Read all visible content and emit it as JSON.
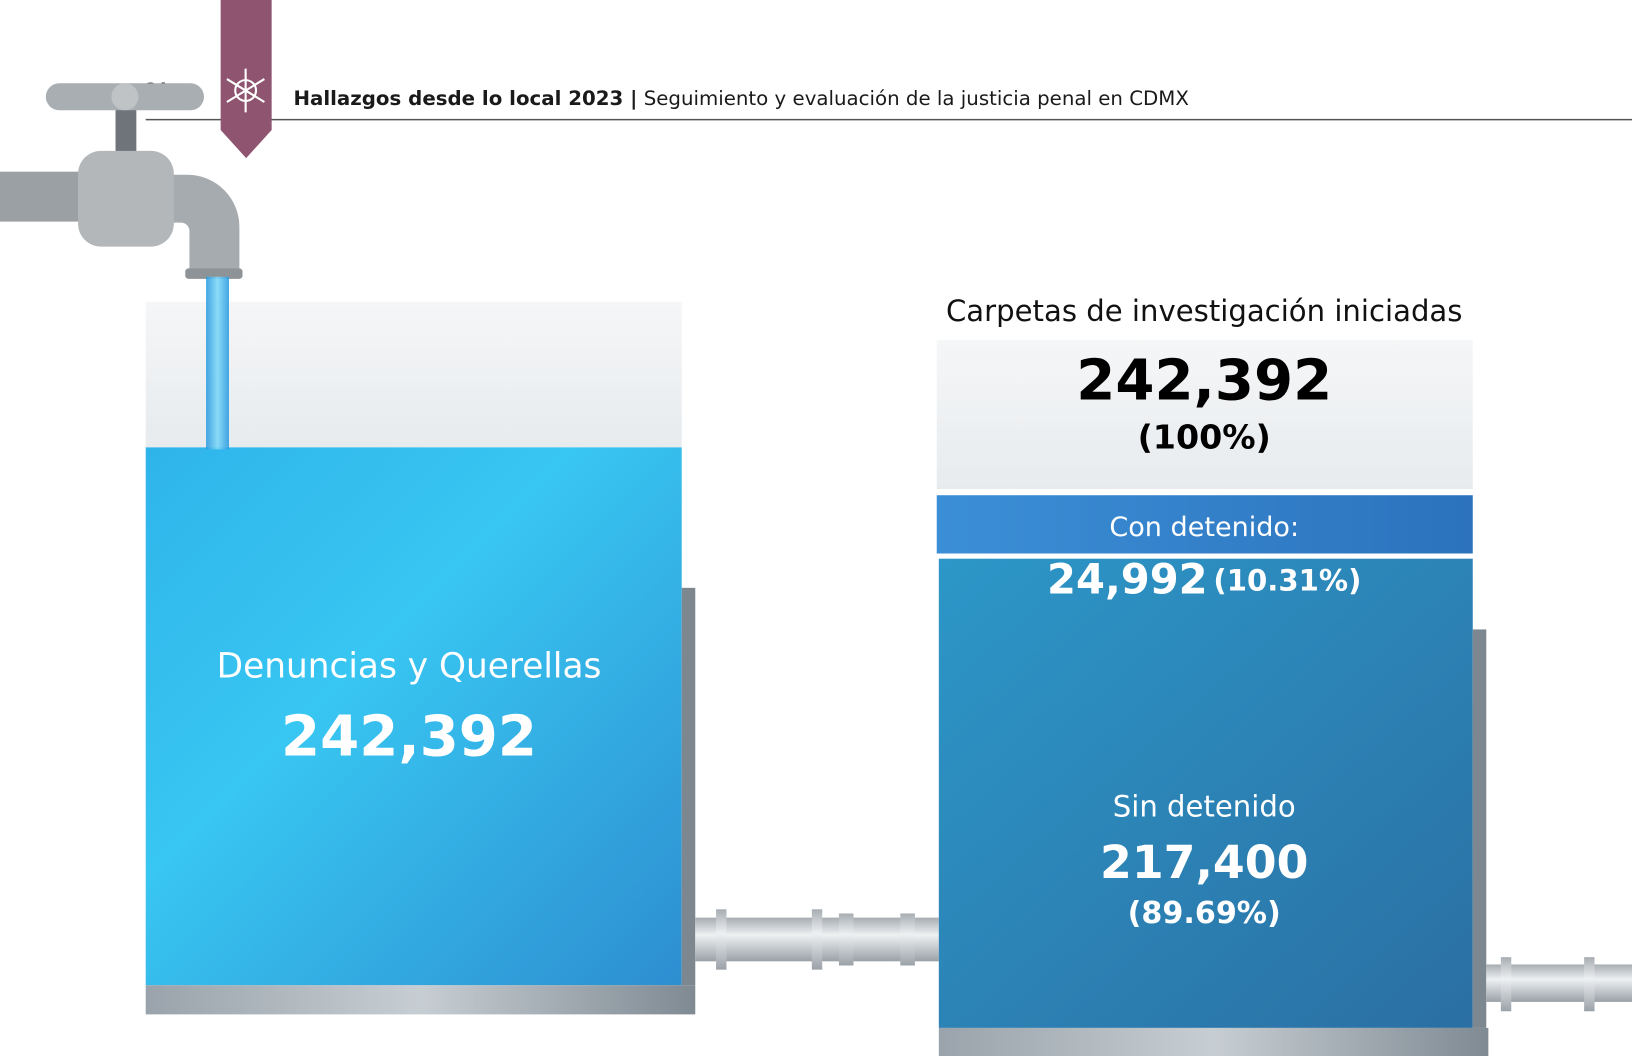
{
  "header": {
    "page_number": "24",
    "title": "Hallazgos desde lo local 2023 |",
    "subtitle": "Seguimiento y evaluación de la justicia penal en CDMX"
  },
  "left_tank": {
    "label": "Denuncias y Querellas",
    "value": "242,392"
  },
  "right_tank": {
    "title": "Carpetas de investigación iniciadas",
    "total": "242,392",
    "total_percent": "(100%)",
    "with_detainee": {
      "label": "Con detenido:",
      "value": "24,992",
      "percent": "(10.31%)"
    },
    "without_detainee": {
      "label": "Sin detenido",
      "value": "217,400",
      "percent": "(89.69%)"
    }
  }
}
